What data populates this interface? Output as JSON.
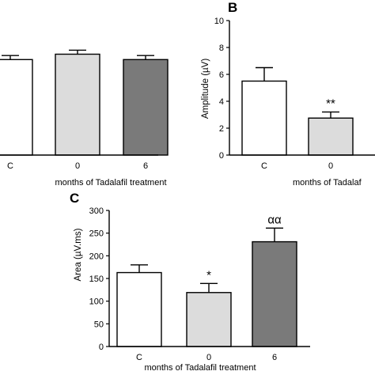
{
  "chart_data": [
    {
      "type": "bar",
      "panel_label": "",
      "categories": [
        "C",
        "0",
        "6"
      ],
      "values": [
        7.1,
        7.5,
        7.1
      ],
      "errors": [
        0.3,
        0.3,
        0.3
      ],
      "colors": [
        "#ffffff",
        "#dcdcdc",
        "#7a7a7a"
      ],
      "annotations": [
        "",
        "",
        ""
      ],
      "title": "",
      "xlabel": "months of Tadalafil treatment",
      "ylabel": "",
      "ylim": [
        0,
        10
      ],
      "yticks": [],
      "grid": false
    },
    {
      "type": "bar",
      "panel_label": "B",
      "categories": [
        "C",
        "0"
      ],
      "values": [
        5.5,
        2.75
      ],
      "errors": [
        1.0,
        0.45
      ],
      "colors": [
        "#ffffff",
        "#dcdcdc"
      ],
      "annotations": [
        "",
        "**"
      ],
      "title": "",
      "xlabel": "months of Tadalaf",
      "ylabel": "Amplitude (µV)",
      "ylim": [
        0,
        10
      ],
      "yticks": [
        "0",
        "2",
        "4",
        "6",
        "8",
        "10"
      ],
      "grid": false
    },
    {
      "type": "bar",
      "panel_label": "C",
      "categories": [
        "C",
        "0",
        "6"
      ],
      "values": [
        163,
        119,
        231
      ],
      "errors": [
        17,
        20,
        30
      ],
      "colors": [
        "#ffffff",
        "#dcdcdc",
        "#7a7a7a"
      ],
      "annotations": [
        "",
        "*",
        "αα"
      ],
      "title": "",
      "xlabel": "months of Tadalafil treatment",
      "ylabel": "Area (µV.ms)",
      "ylim": [
        0,
        300
      ],
      "yticks": [
        "0",
        "50",
        "100",
        "150",
        "200",
        "250",
        "300"
      ],
      "grid": false
    }
  ]
}
